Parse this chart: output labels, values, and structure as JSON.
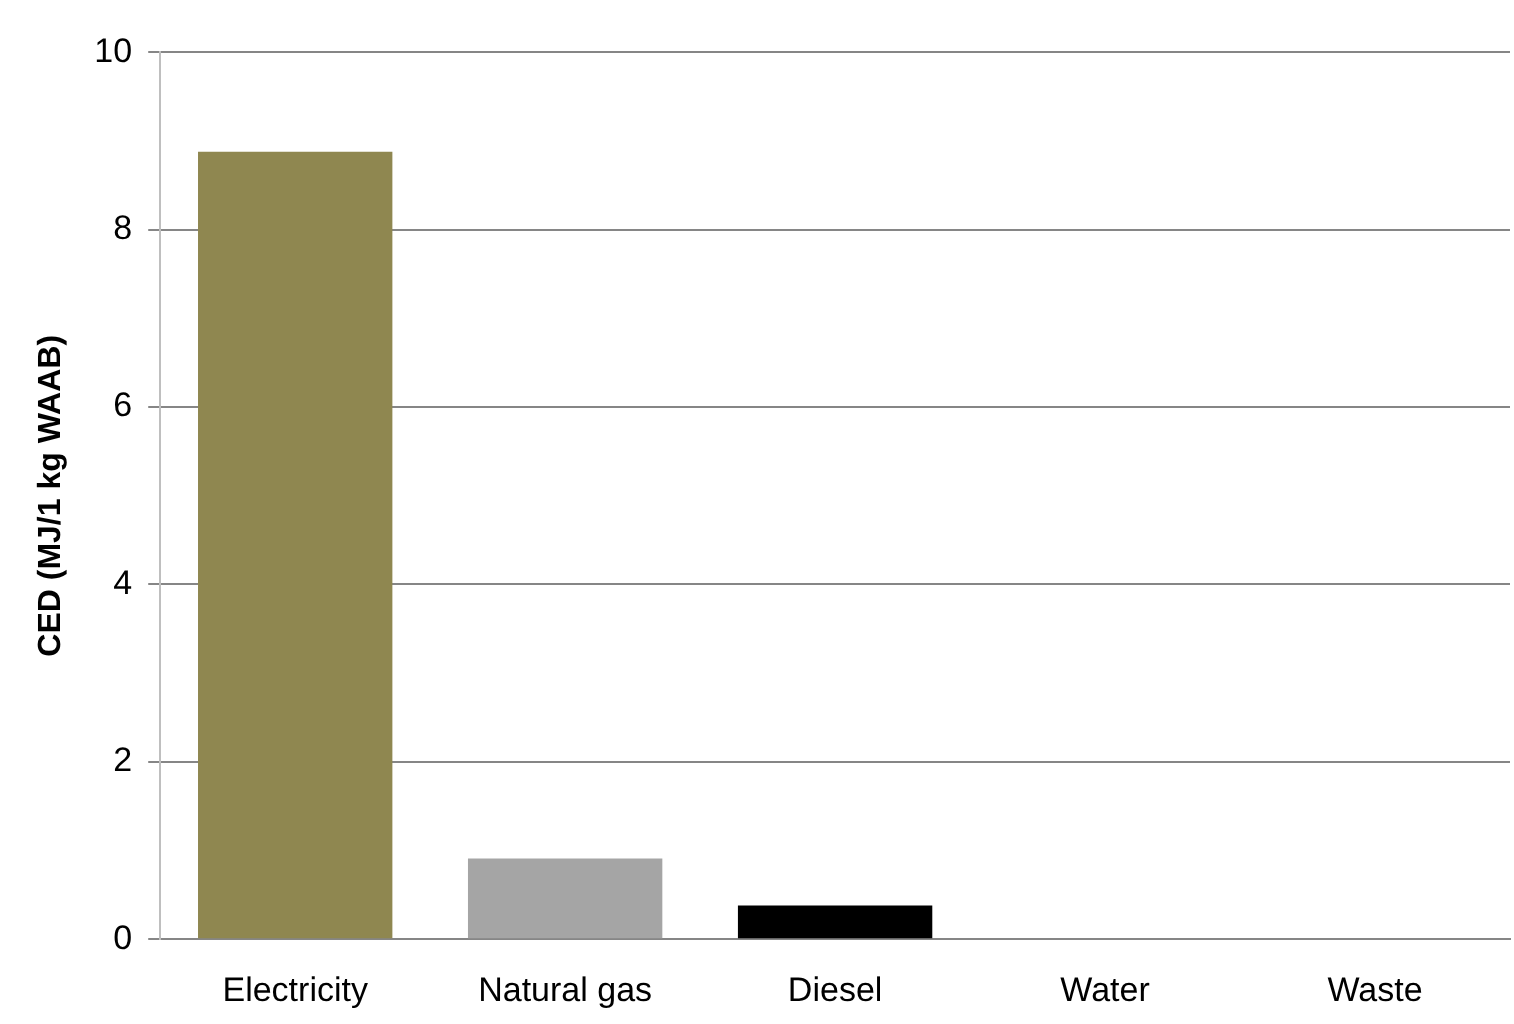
{
  "chart_data": {
    "type": "bar",
    "ylabel": "CED (MJ/1 kg WAAB)",
    "categories": [
      "Electricity",
      "Natural gas",
      "Diesel",
      "Water",
      "Waste"
    ],
    "values": [
      8.88,
      0.91,
      0.38,
      0,
      0
    ],
    "colors": [
      "#8f8750",
      "#a5a5a5",
      "#000000",
      "#8f8750",
      "#8f8750"
    ],
    "ylim": [
      0,
      10
    ],
    "yticks": [
      0,
      2,
      4,
      6,
      8,
      10
    ],
    "grid": "y",
    "legend": false
  }
}
